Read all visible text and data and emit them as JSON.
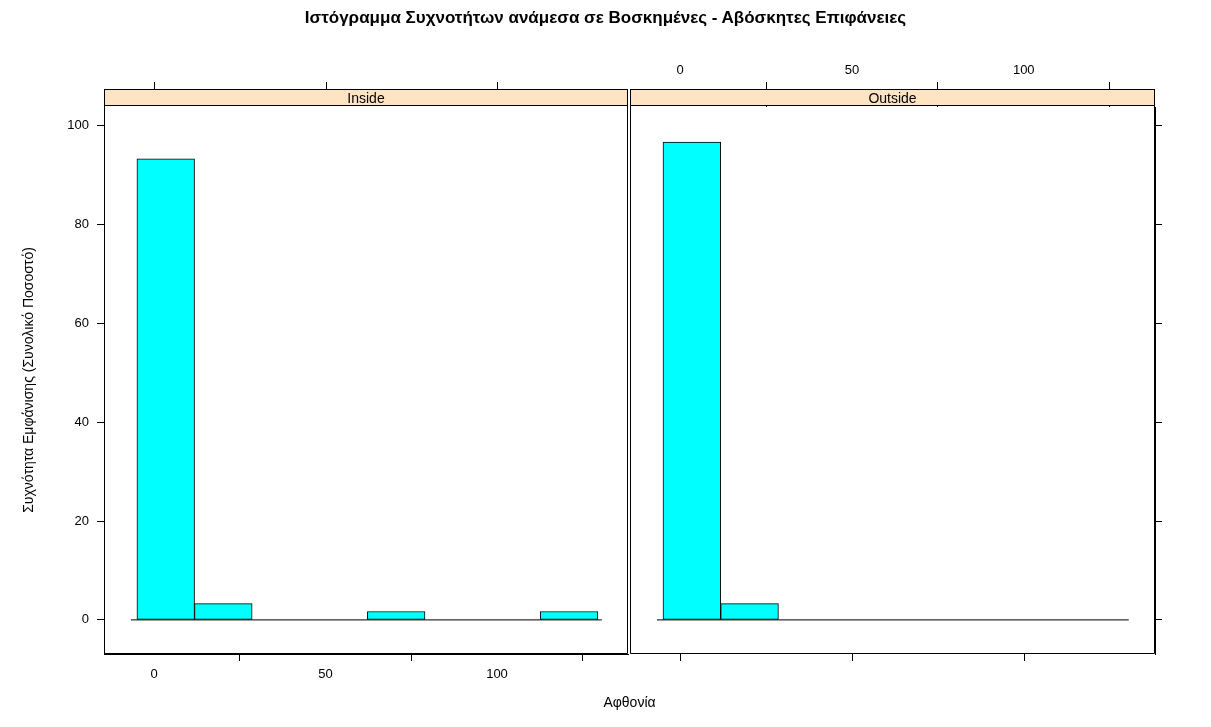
{
  "chart_data": [
    {
      "type": "histogram",
      "title": "Ιστόγραμμα Συχνοτήτων ανάμεσα σε Βοσκημένες - Αβόσκητες  Επιφάνειες",
      "subtitle": "Inside",
      "xlabel": "Αφθονία",
      "ylabel": "Συχνότητα Εμφάνισης (Συνολικό Ποσοστό)",
      "bins": [
        -5,
        11.8,
        28.6,
        45.4,
        62.2,
        79,
        95.8,
        112.6,
        129.4
      ],
      "values": [
        93.3,
        3.3,
        0,
        0,
        1.7,
        0,
        0,
        1.7
      ],
      "color": "#00ffff",
      "xlim": [
        -14.6,
        138.2
      ],
      "xticks": [
        0,
        50,
        100
      ],
      "ylim": [
        -6.9,
        103.8
      ],
      "yticks": [
        0,
        20,
        40,
        60,
        80,
        100
      ],
      "ref_lines": [
        {
          "axis": "y",
          "value": 0
        }
      ]
    },
    {
      "type": "histogram",
      "subtitle": "Outside",
      "bins": [
        -5,
        11.8,
        28.6,
        45.4,
        62.2,
        79,
        95.8,
        112.6,
        129.4
      ],
      "values": [
        96.7,
        3.3,
        0,
        0,
        0,
        0,
        0,
        0
      ],
      "color": "#00ffff",
      "xlim": [
        -14.6,
        138.2
      ],
      "xticks": [
        0,
        50,
        100
      ],
      "ylim": [
        -6.9,
        103.8
      ],
      "yticks": [
        0,
        20,
        40,
        60,
        80,
        100
      ],
      "tick_labels": "x",
      "ref_lines": [
        {
          "axis": "y",
          "value": 0
        }
      ]
    }
  ]
}
